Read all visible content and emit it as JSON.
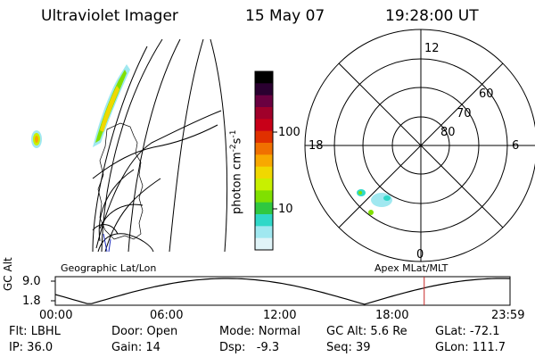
{
  "header": {
    "instrument": "Ultraviolet Imager",
    "date": "15 May 07",
    "time": "19:28:00 UT"
  },
  "colorbar": {
    "unit_label": "photon cm",
    "unit_exp1": "-2",
    "unit_s": "s",
    "unit_exp2": "-1",
    "ticks": [
      "100",
      "10"
    ],
    "colors": [
      "#000000",
      "#2a0030",
      "#6a0040",
      "#a0002a",
      "#c80018",
      "#e03000",
      "#f07000",
      "#f8a800",
      "#f0d800",
      "#c8f000",
      "#80e000",
      "#30c840",
      "#30d8c8",
      "#a0e8f0",
      "#e0f4f8"
    ]
  },
  "left_panel": {
    "label": "Geographic Lat/Lon"
  },
  "right_panel": {
    "label": "Apex MLat/MLT",
    "mlt_labels": {
      "top": "12",
      "left": "18",
      "right": "6",
      "bottom": "0"
    },
    "lat_labels": [
      "60",
      "70",
      "80"
    ]
  },
  "timeline": {
    "axis_label": "GC Alt",
    "y_ticks": [
      "9.0",
      "1.8"
    ],
    "x_ticks": [
      "00:00",
      "06:00",
      "12:00",
      "18:00",
      "23:59"
    ],
    "current_marker_hours": 19.47,
    "marker_color": "#c82828"
  },
  "status": {
    "filter": "Flt: LBHL",
    "ip": "IP: 36.0",
    "door": "Door: Open",
    "gain": "Gain: 14",
    "mode": "Mode: Normal",
    "dsp": "Dsp:   -9.3",
    "gc_alt": "GC Alt: 5.6 Re",
    "seq": "Seq: 39",
    "glat": "GLat: -72.1",
    "glon": "GLon: 111.7"
  }
}
